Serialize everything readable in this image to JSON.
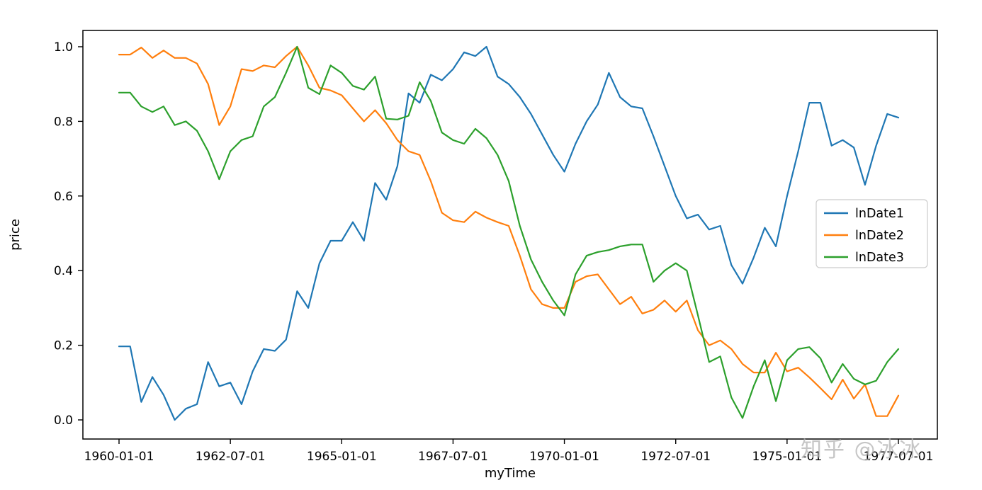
{
  "watermark": "知乎 @冰冰",
  "colors": {
    "blue": "#1f77b4",
    "orange": "#ff7f0e",
    "green": "#2ca02c",
    "spine": "#000000",
    "legend_border": "#cccccc"
  },
  "chart_data": {
    "type": "line",
    "title": "",
    "xlabel": "myTime",
    "ylabel": "price",
    "grid": false,
    "legend_position": "center right",
    "ylim": [
      -0.05,
      1.05
    ],
    "yticks": [
      "0.0",
      "0.2",
      "0.4",
      "0.6",
      "0.8",
      "1.0"
    ],
    "ytick_values": [
      0.0,
      0.2,
      0.4,
      0.6,
      0.8,
      1.0
    ],
    "xtick_indices": [
      0,
      10,
      20,
      30,
      40,
      50,
      60,
      70
    ],
    "xtick_labels": [
      "1960-01-01",
      "1962-07-01",
      "1965-01-01",
      "1967-07-01",
      "1970-01-01",
      "1972-07-01",
      "1975-01-01",
      "1977-07-01"
    ],
    "x_dates": [
      "1960-01-01",
      "1960-04-01",
      "1960-07-01",
      "1960-10-01",
      "1961-01-01",
      "1961-04-01",
      "1961-07-01",
      "1961-10-01",
      "1962-01-01",
      "1962-04-01",
      "1962-07-01",
      "1962-10-01",
      "1963-01-01",
      "1963-04-01",
      "1963-07-01",
      "1963-10-01",
      "1964-01-01",
      "1964-04-01",
      "1964-07-01",
      "1964-10-01",
      "1965-01-01",
      "1965-04-01",
      "1965-07-01",
      "1965-10-01",
      "1966-01-01",
      "1966-04-01",
      "1966-07-01",
      "1966-10-01",
      "1967-01-01",
      "1967-04-01",
      "1967-07-01",
      "1967-10-01",
      "1968-01-01",
      "1968-04-01",
      "1968-07-01",
      "1968-10-01",
      "1969-01-01",
      "1969-04-01",
      "1969-07-01",
      "1969-10-01",
      "1970-01-01",
      "1970-04-01",
      "1970-07-01",
      "1970-10-01",
      "1971-01-01",
      "1971-04-01",
      "1971-07-01",
      "1971-10-01",
      "1972-01-01",
      "1972-04-01",
      "1972-07-01",
      "1972-10-01",
      "1973-01-01",
      "1973-04-01",
      "1973-07-01",
      "1973-10-01",
      "1974-01-01",
      "1974-04-01",
      "1974-07-01",
      "1974-10-01",
      "1975-01-01",
      "1975-04-01",
      "1975-07-01",
      "1975-10-01",
      "1976-01-01",
      "1976-04-01",
      "1976-07-01",
      "1976-10-01",
      "1977-01-01",
      "1977-04-01",
      "1977-07-01"
    ],
    "series": [
      {
        "name": "lnDate1",
        "color": "#1f77b4",
        "values": [
          0.197,
          0.197,
          0.048,
          0.115,
          0.067,
          0.0,
          0.03,
          0.042,
          0.155,
          0.09,
          0.1,
          0.042,
          0.13,
          0.19,
          0.185,
          0.215,
          0.345,
          0.3,
          0.42,
          0.48,
          0.48,
          0.53,
          0.48,
          0.635,
          0.59,
          0.68,
          0.875,
          0.85,
          0.925,
          0.91,
          0.94,
          0.985,
          0.975,
          1.0,
          0.92,
          0.9,
          0.865,
          0.82,
          0.765,
          0.71,
          0.665,
          0.74,
          0.8,
          0.845,
          0.93,
          0.865,
          0.84,
          0.835,
          0.76,
          0.68,
          0.6,
          0.54,
          0.55,
          0.51,
          0.52,
          0.415,
          0.365,
          0.435,
          0.515,
          0.465,
          0.6,
          0.72,
          0.85,
          0.85,
          0.735,
          0.75,
          0.73,
          0.63,
          0.735,
          0.82,
          0.81
        ]
      },
      {
        "name": "lnDate2",
        "color": "#ff7f0e",
        "values": [
          0.979,
          0.979,
          0.998,
          0.97,
          0.99,
          0.97,
          0.97,
          0.955,
          0.9,
          0.79,
          0.84,
          0.94,
          0.935,
          0.95,
          0.945,
          0.975,
          1.0,
          0.95,
          0.89,
          0.883,
          0.87,
          0.835,
          0.8,
          0.83,
          0.795,
          0.75,
          0.72,
          0.71,
          0.64,
          0.555,
          0.535,
          0.53,
          0.558,
          0.542,
          0.53,
          0.52,
          0.44,
          0.35,
          0.31,
          0.3,
          0.3,
          0.37,
          0.385,
          0.39,
          0.35,
          0.31,
          0.33,
          0.285,
          0.295,
          0.32,
          0.29,
          0.32,
          0.24,
          0.2,
          0.213,
          0.19,
          0.15,
          0.127,
          0.127,
          0.18,
          0.13,
          0.14,
          0.114,
          0.085,
          0.055,
          0.108,
          0.057,
          0.095,
          0.01,
          0.01,
          0.065
        ]
      },
      {
        "name": "lnDate3",
        "color": "#2ca02c",
        "values": [
          0.877,
          0.877,
          0.84,
          0.825,
          0.84,
          0.79,
          0.8,
          0.775,
          0.72,
          0.645,
          0.72,
          0.75,
          0.76,
          0.84,
          0.865,
          0.93,
          1.0,
          0.89,
          0.873,
          0.95,
          0.93,
          0.895,
          0.885,
          0.92,
          0.807,
          0.805,
          0.815,
          0.905,
          0.855,
          0.77,
          0.75,
          0.74,
          0.78,
          0.755,
          0.71,
          0.64,
          0.52,
          0.43,
          0.37,
          0.32,
          0.28,
          0.39,
          0.44,
          0.45,
          0.455,
          0.465,
          0.47,
          0.47,
          0.37,
          0.4,
          0.42,
          0.4,
          0.28,
          0.155,
          0.17,
          0.06,
          0.005,
          0.09,
          0.16,
          0.05,
          0.16,
          0.19,
          0.195,
          0.165,
          0.1,
          0.15,
          0.11,
          0.095,
          0.105,
          0.155,
          0.19
        ]
      }
    ]
  }
}
